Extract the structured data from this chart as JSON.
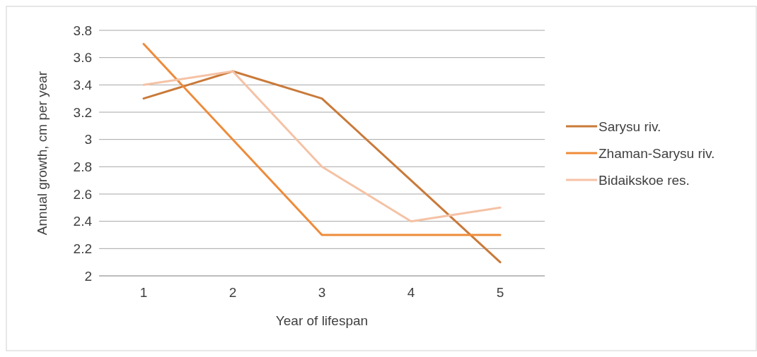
{
  "chart_data": {
    "type": "line",
    "xlabel": "Year of lifespan",
    "ylabel": "Annual growth, cm per year",
    "categories": [
      "1",
      "2",
      "3",
      "4",
      "5"
    ],
    "series": [
      {
        "name": "Sarysu riv.",
        "color": "#c97a3a",
        "values": [
          3.3,
          3.5,
          3.3,
          2.7,
          2.1
        ]
      },
      {
        "name": "Zhaman-Sarysu riv.",
        "color": "#ee8b3a",
        "values": [
          3.7,
          3.0,
          2.3,
          2.3,
          2.3
        ]
      },
      {
        "name": "Bidaikskoe res.",
        "color": "#f5c2a5",
        "values": [
          3.4,
          3.5,
          2.8,
          2.4,
          2.5
        ]
      }
    ],
    "ylim": [
      2,
      3.8
    ],
    "yticks": [
      2,
      2.2,
      2.4,
      2.6,
      2.8,
      3,
      3.2,
      3.4,
      3.6,
      3.8
    ],
    "grid": "y",
    "legend": "right",
    "marker": "none",
    "line_style": "solid"
  }
}
